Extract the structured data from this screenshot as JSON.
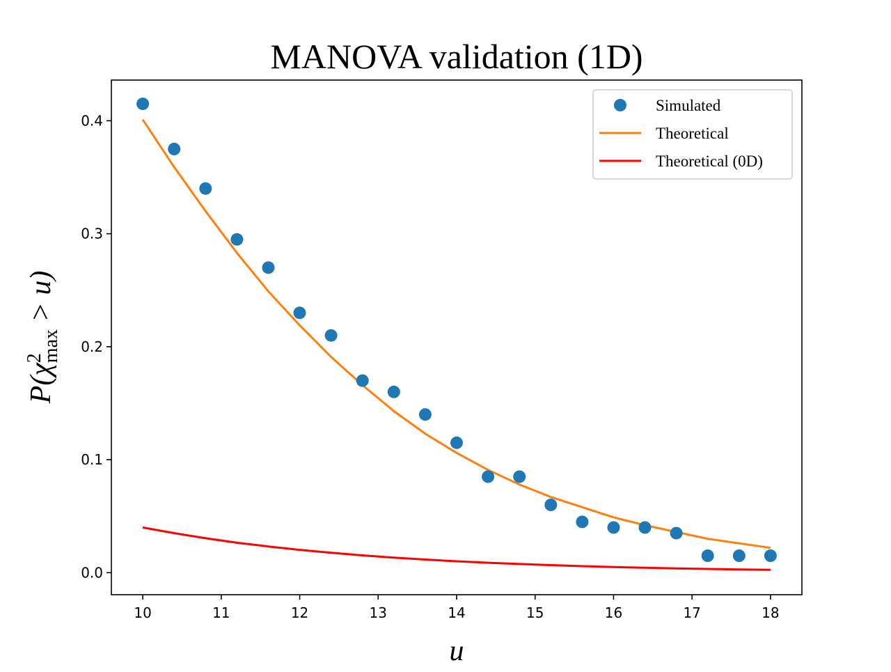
{
  "chart_data": {
    "type": "line",
    "title": "MANOVA validation (1D)",
    "xlabel": "u",
    "ylabel": {
      "prefix": "P(χ",
      "sup": "2",
      "sub": "max",
      "suffix": " > u)"
    },
    "xlim": [
      9.6,
      18.4
    ],
    "ylim": [
      -0.0195,
      0.436
    ],
    "xticks": [
      10,
      11,
      12,
      13,
      14,
      15,
      16,
      17,
      18
    ],
    "yticks": [
      0.0,
      0.1,
      0.2,
      0.3,
      0.4
    ],
    "ytick_labels": [
      "0.0",
      "0.1",
      "0.2",
      "0.3",
      "0.4"
    ],
    "grid": false,
    "legend_position": "top-right",
    "series": [
      {
        "name": "Simulated",
        "kind": "scatter",
        "color": "#1f77b4",
        "x": [
          10.0,
          10.4,
          10.8,
          11.2,
          11.6,
          12.0,
          12.4,
          12.8,
          13.2,
          13.6,
          14.0,
          14.4,
          14.8,
          15.2,
          15.6,
          16.0,
          16.4,
          16.8,
          17.2,
          17.6,
          18.0
        ],
        "y": [
          0.415,
          0.375,
          0.34,
          0.295,
          0.27,
          0.23,
          0.21,
          0.17,
          0.16,
          0.14,
          0.115,
          0.085,
          0.085,
          0.06,
          0.045,
          0.04,
          0.04,
          0.035,
          0.015,
          0.015,
          0.015
        ]
      },
      {
        "name": "Theoretical",
        "kind": "line",
        "color": "#ff7f0e",
        "x": [
          10.0,
          10.4,
          10.8,
          11.2,
          11.6,
          12.0,
          12.4,
          12.8,
          13.2,
          13.6,
          14.0,
          14.4,
          14.8,
          15.2,
          15.6,
          16.0,
          16.4,
          16.8,
          17.2,
          17.6,
          18.0
        ],
        "y": [
          0.401,
          0.359,
          0.32,
          0.283,
          0.249,
          0.219,
          0.191,
          0.166,
          0.143,
          0.123,
          0.106,
          0.091,
          0.078,
          0.067,
          0.058,
          0.049,
          0.042,
          0.036,
          0.03,
          0.026,
          0.022
        ]
      },
      {
        "name": "Theoretical (0D)",
        "kind": "line",
        "color": "#ff0000",
        "x": [
          10.0,
          10.4,
          10.8,
          11.2,
          11.6,
          12.0,
          12.4,
          12.8,
          13.2,
          13.6,
          14.0,
          14.4,
          14.8,
          15.2,
          15.6,
          16.0,
          16.4,
          16.8,
          17.2,
          17.6,
          18.0
        ],
        "y": [
          0.04,
          0.035,
          0.0305,
          0.0265,
          0.0232,
          0.0202,
          0.0176,
          0.0153,
          0.0133,
          0.0116,
          0.0101,
          0.0088,
          0.0077,
          0.0067,
          0.0058,
          0.005,
          0.0044,
          0.0038,
          0.0033,
          0.0029,
          0.0025
        ]
      }
    ]
  }
}
